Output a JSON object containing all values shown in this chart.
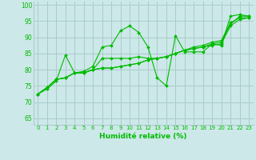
{
  "xlabel": "Humidité relative (%)",
  "xlim": [
    -0.5,
    23.5
  ],
  "ylim": [
    63,
    101
  ],
  "yticks": [
    65,
    70,
    75,
    80,
    85,
    90,
    95,
    100
  ],
  "xticks": [
    0,
    1,
    2,
    3,
    4,
    5,
    6,
    7,
    8,
    9,
    10,
    11,
    12,
    13,
    14,
    15,
    16,
    17,
    18,
    19,
    20,
    21,
    22,
    23
  ],
  "bg_color": "#cce8e8",
  "grid_color": "#aacccc",
  "line_color": "#00bb00",
  "series": [
    [
      72.5,
      74.5,
      77.0,
      77.5,
      79.0,
      79.5,
      81.0,
      87.0,
      87.5,
      92.0,
      93.5,
      91.5,
      87.0,
      77.5,
      75.0,
      90.5,
      85.5,
      85.5,
      85.5,
      88.0,
      87.5,
      96.5,
      97.0,
      96.5
    ],
    [
      72.5,
      74.5,
      77.0,
      77.5,
      79.0,
      79.0,
      80.0,
      83.5,
      83.5,
      83.5,
      83.5,
      84.0,
      83.5,
      83.5,
      84.0,
      85.0,
      86.0,
      86.5,
      87.0,
      88.0,
      88.5,
      94.0,
      96.5,
      96.5
    ],
    [
      72.5,
      74.5,
      77.0,
      77.5,
      79.0,
      79.0,
      80.0,
      80.5,
      80.5,
      81.0,
      81.5,
      82.0,
      83.0,
      83.5,
      84.0,
      85.0,
      86.0,
      87.0,
      87.5,
      88.5,
      89.0,
      94.5,
      96.0,
      96.0
    ],
    [
      72.5,
      74.0,
      76.5,
      84.5,
      79.0,
      79.0,
      80.0,
      80.5,
      80.5,
      81.0,
      81.5,
      82.0,
      83.0,
      83.5,
      84.0,
      85.0,
      86.0,
      86.5,
      87.0,
      87.5,
      88.0,
      93.5,
      95.5,
      96.0
    ]
  ]
}
